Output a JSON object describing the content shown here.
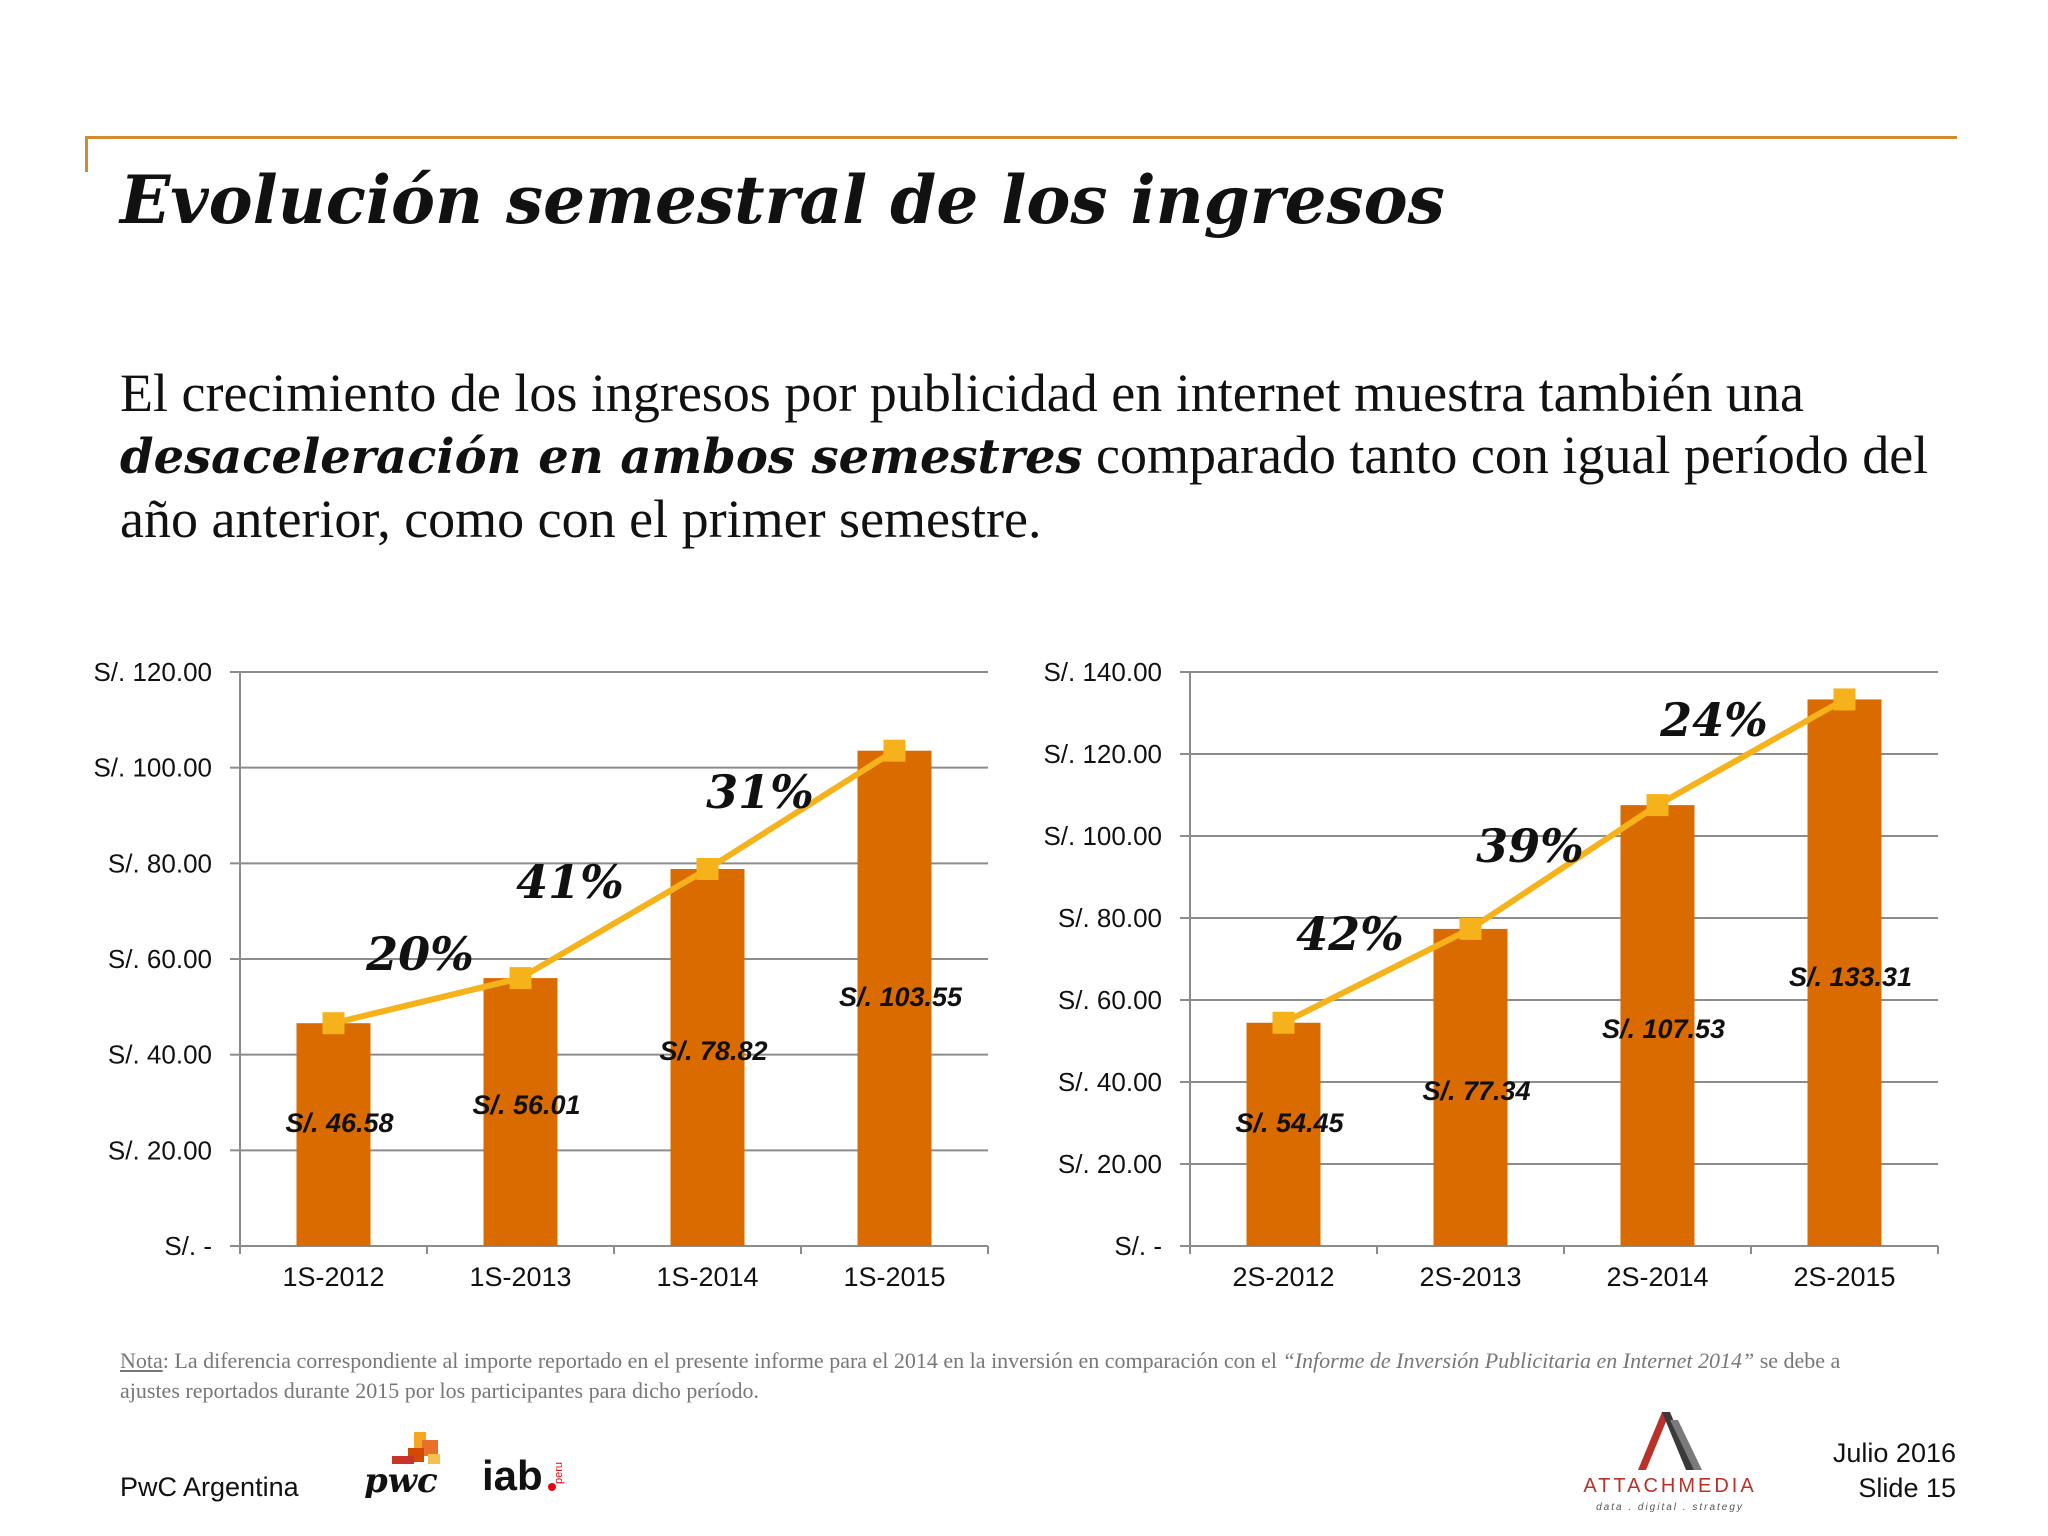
{
  "header": {
    "title": "Evolución semestral de los ingresos"
  },
  "intro": {
    "part1": "El crecimiento de los ingresos por publicidad en internet muestra también una ",
    "emphasis": "desaceleración en ambos semestres",
    "part2": " comparado tanto con igual período del año anterior, como con el primer semestre."
  },
  "chart_data": [
    {
      "type": "bar",
      "categories": [
        "1S-2012",
        "1S-2013",
        "1S-2014",
        "1S-2015"
      ],
      "values": [
        46.58,
        56.01,
        78.82,
        103.55
      ],
      "data_labels": [
        "S/. 46.58",
        "S/. 56.01",
        "S/. 78.82",
        "S/. 103.55"
      ],
      "growth_labels": [
        "20%",
        "41%",
        "31%"
      ],
      "ylim": [
        0,
        120
      ],
      "yticks": [
        0,
        20,
        40,
        60,
        80,
        100,
        120
      ],
      "ytick_labels": [
        "S/. -",
        "S/. 20.00",
        "S/. 40.00",
        "S/. 60.00",
        "S/. 80.00",
        "S/. 100.00",
        "S/. 120.00"
      ],
      "grid": true,
      "bar_color": "#d96b00",
      "line_color": "#f5b21a"
    },
    {
      "type": "bar",
      "categories": [
        "2S-2012",
        "2S-2013",
        "2S-2014",
        "2S-2015"
      ],
      "values": [
        54.45,
        77.34,
        107.53,
        133.31
      ],
      "data_labels": [
        "S/. 54.45",
        "S/. 77.34",
        "S/. 107.53",
        "S/. 133.31"
      ],
      "growth_labels": [
        "42%",
        "39%",
        "24%"
      ],
      "ylim": [
        0,
        140
      ],
      "yticks": [
        0,
        20,
        40,
        60,
        80,
        100,
        120,
        140
      ],
      "ytick_labels": [
        "S/. -",
        "S/. 20.00",
        "S/. 40.00",
        "S/. 60.00",
        "S/. 80.00",
        "S/. 100.00",
        "S/. 120.00",
        "S/. 140.00"
      ],
      "grid": true,
      "bar_color": "#d96b00",
      "line_color": "#f5b21a"
    }
  ],
  "note": {
    "label": "Nota",
    "text1": ": La diferencia correspondiente al importe reportado en el presente informe para el 2014 en la inversión en comparación con el ",
    "italic": "“Informe de Inversión Publicitaria en Internet 2014”",
    "text2": " se debe a ajustes reportados durante 2015 por los participantes para dicho período."
  },
  "footer": {
    "company": "PwC Argentina",
    "date": "Julio 2016",
    "slide": "Slide 15",
    "logos": {
      "pwc": "pwc",
      "iab": "iab",
      "iab_sub": "peru",
      "attach_name": "ATTACHMEDIA",
      "attach_tagline": "data . digital . strategy"
    }
  }
}
